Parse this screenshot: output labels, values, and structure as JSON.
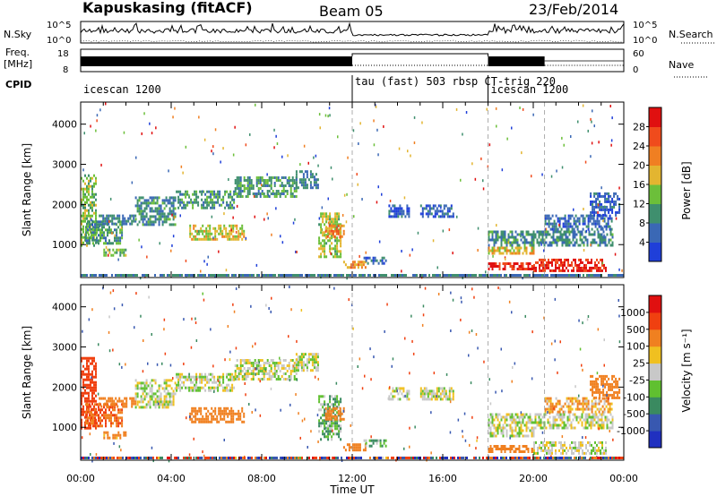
{
  "header": {
    "station": "Kapuskasing (fitACF)",
    "beam": "Beam 05",
    "date": "23/Feb/2014"
  },
  "left_labels": {
    "nsky": "N.Sky",
    "freq_line1": "Freq.",
    "freq_line2": "[MHz]",
    "cpid": "CPID"
  },
  "right_labels": {
    "nsearch": "N.Search",
    "nave": "Nave"
  },
  "noise_panel": {
    "tick_top": "10^5",
    "tick_bottom": "10^0"
  },
  "freq_panel": {
    "left_ticks": [
      "18",
      "8"
    ],
    "right_ticks": [
      "60",
      "0"
    ]
  },
  "cpid_segments": [
    {
      "label": "icescan 1200",
      "start_hour": 0
    },
    {
      "label": "tau (fast) 503 rbsp CT-trig 220",
      "start_hour": 12
    },
    {
      "label": "icescan 1200",
      "start_hour": 18
    }
  ],
  "time_axis": {
    "label": "Time UT",
    "ticks": [
      "00:00",
      "04:00",
      "08:00",
      "12:00",
      "16:00",
      "20:00",
      "00:00"
    ],
    "start_hour": 0,
    "end_hour": 24,
    "mode_boundaries": [
      12,
      18,
      20.5
    ]
  },
  "range_axis": {
    "label": "Slant Range [km]",
    "ticks": [
      "1000",
      "2000",
      "3000",
      "4000"
    ],
    "ylim": [
      180,
      4550
    ]
  },
  "power_colorbar": {
    "label": "Power [dB]",
    "ticks": [
      "4",
      "8",
      "12",
      "16",
      "20",
      "24",
      "28"
    ],
    "colors": [
      "#1f3fd9",
      "#3a68b5",
      "#3f8f6e",
      "#6cbf3a",
      "#e3b530",
      "#f07f22",
      "#f04b1c",
      "#e01010"
    ]
  },
  "velocity_colorbar": {
    "label": "Velocity [m s⁻¹]",
    "ticks": [
      "1000",
      "500",
      "100",
      "25",
      "-25",
      "-100",
      "-500",
      "-1000"
    ],
    "colors": [
      "#2030c0",
      "#3858b0",
      "#3a8a60",
      "#60c030",
      "#c8c8c8",
      "#f0c020",
      "#f08020",
      "#f04010",
      "#e01010"
    ]
  },
  "chart_data": [
    {
      "type": "heatmap",
      "title": "Power",
      "xlabel": "",
      "ylabel": "Slant Range [km]",
      "xlim": [
        0,
        24
      ],
      "ylim": [
        180,
        4550
      ],
      "zlabel": "Power [dB]",
      "zlim": [
        0,
        32
      ],
      "regions": [
        {
          "t0": 0.0,
          "t1": 0.7,
          "r0": 1000,
          "r1": 2750,
          "v": 14
        },
        {
          "t0": 0.2,
          "t1": 1.8,
          "r0": 1000,
          "r1": 1600,
          "v": 10
        },
        {
          "t0": 0.8,
          "t1": 2.4,
          "r0": 1500,
          "r1": 1750,
          "v": 8
        },
        {
          "t0": 1.0,
          "t1": 2.0,
          "r0": 700,
          "r1": 900,
          "v": 14
        },
        {
          "t0": 2.4,
          "t1": 4.2,
          "r0": 1500,
          "r1": 2200,
          "v": 9
        },
        {
          "t0": 4.2,
          "t1": 6.8,
          "r0": 1900,
          "r1": 2350,
          "v": 10
        },
        {
          "t0": 4.8,
          "t1": 7.2,
          "r0": 1100,
          "r1": 1500,
          "v": 17
        },
        {
          "t0": 6.8,
          "t1": 9.5,
          "r0": 2200,
          "r1": 2700,
          "v": 10
        },
        {
          "t0": 9.5,
          "t1": 10.5,
          "r0": 2400,
          "r1": 2850,
          "v": 8
        },
        {
          "t0": 10.5,
          "t1": 11.5,
          "r0": 700,
          "r1": 1800,
          "v": 15
        },
        {
          "t0": 10.8,
          "t1": 11.6,
          "r0": 1200,
          "r1": 1500,
          "v": 22
        },
        {
          "t0": 11.6,
          "t1": 12.6,
          "r0": 420,
          "r1": 600,
          "v": 21
        },
        {
          "t0": 12.5,
          "t1": 13.5,
          "r0": 550,
          "r1": 700,
          "v": 6
        },
        {
          "t0": 13.6,
          "t1": 14.5,
          "r0": 1700,
          "r1": 2000,
          "v": 5
        },
        {
          "t0": 15.0,
          "t1": 16.5,
          "r0": 1700,
          "r1": 2000,
          "v": 5
        },
        {
          "t0": 18.0,
          "t1": 23.5,
          "r0": 1000,
          "r1": 1350,
          "v": 9
        },
        {
          "t0": 18.0,
          "t1": 20.0,
          "r0": 800,
          "r1": 950,
          "v": 18
        },
        {
          "t0": 18.0,
          "t1": 20.0,
          "r0": 400,
          "r1": 560,
          "v": 29
        },
        {
          "t0": 20.0,
          "t1": 23.2,
          "r0": 350,
          "r1": 650,
          "v": 29
        },
        {
          "t0": 20.5,
          "t1": 23.5,
          "r0": 1400,
          "r1": 1750,
          "v": 6
        },
        {
          "t0": 22.5,
          "t1": 23.8,
          "r0": 1750,
          "r1": 2300,
          "v": 5
        }
      ]
    },
    {
      "type": "heatmap",
      "title": "Velocity",
      "xlabel": "Time UT",
      "ylabel": "Slant Range [km]",
      "xlim": [
        0,
        24
      ],
      "ylim": [
        180,
        4550
      ],
      "zlabel": "Velocity [m s⁻¹]",
      "zlim": [
        -1000,
        1000
      ],
      "regions": [
        {
          "t0": 0.0,
          "t1": 0.7,
          "r0": 1000,
          "r1": 2750,
          "v": -500
        },
        {
          "t0": 0.2,
          "t1": 1.8,
          "r0": 1000,
          "r1": 1600,
          "v": -300
        },
        {
          "t0": 0.8,
          "t1": 2.4,
          "r0": 1500,
          "r1": 1750,
          "v": -150
        },
        {
          "t0": 1.0,
          "t1": 2.0,
          "r0": 700,
          "r1": 900,
          "v": -100
        },
        {
          "t0": 2.4,
          "t1": 4.2,
          "r0": 1500,
          "r1": 2200,
          "v": 0
        },
        {
          "t0": 4.2,
          "t1": 6.8,
          "r0": 1900,
          "r1": 2350,
          "v": 0
        },
        {
          "t0": 4.8,
          "t1": 7.2,
          "r0": 1100,
          "r1": 1500,
          "v": -150
        },
        {
          "t0": 6.8,
          "t1": 9.5,
          "r0": 2200,
          "r1": 2700,
          "v": 0
        },
        {
          "t0": 9.5,
          "t1": 10.5,
          "r0": 2400,
          "r1": 2850,
          "v": 0
        },
        {
          "t0": 10.5,
          "t1": 11.5,
          "r0": 700,
          "r1": 1800,
          "v": 60
        },
        {
          "t0": 10.8,
          "t1": 11.6,
          "r0": 1200,
          "r1": 1500,
          "v": -200
        },
        {
          "t0": 11.6,
          "t1": 12.6,
          "r0": 420,
          "r1": 600,
          "v": -150
        },
        {
          "t0": 12.5,
          "t1": 13.5,
          "r0": 550,
          "r1": 700,
          "v": 60
        },
        {
          "t0": 13.6,
          "t1": 14.5,
          "r0": 1700,
          "r1": 2000,
          "v": 0
        },
        {
          "t0": 15.0,
          "t1": 16.5,
          "r0": 1700,
          "r1": 2000,
          "v": 0
        },
        {
          "t0": 18.0,
          "t1": 23.5,
          "r0": 1000,
          "r1": 1350,
          "v": 0
        },
        {
          "t0": 18.0,
          "t1": 20.0,
          "r0": 800,
          "r1": 950,
          "v": 0
        },
        {
          "t0": 18.0,
          "t1": 20.0,
          "r0": 400,
          "r1": 560,
          "v": -150
        },
        {
          "t0": 20.0,
          "t1": 23.2,
          "r0": 350,
          "r1": 650,
          "v": 0
        },
        {
          "t0": 20.5,
          "t1": 23.5,
          "r0": 1400,
          "r1": 1750,
          "v": -60
        },
        {
          "t0": 22.5,
          "t1": 23.8,
          "r0": 1750,
          "r1": 2300,
          "v": -150
        }
      ]
    }
  ]
}
